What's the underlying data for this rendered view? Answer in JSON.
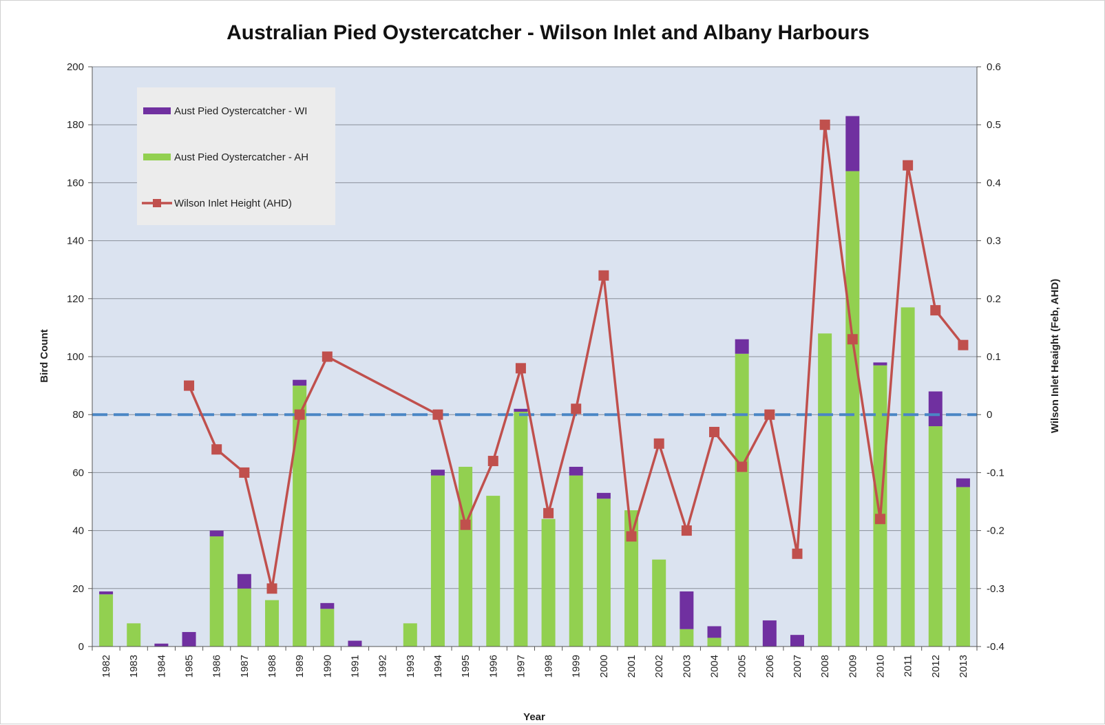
{
  "chart_data": {
    "type": "bar",
    "title": "Australian Pied Oystercatcher - Wilson Inlet and Albany Harbours",
    "xlabel": "Year",
    "ylabel": "Bird Count",
    "y2label": "Wilson Inlet Heaight (Feb, AHD)",
    "ylim": [
      0,
      200
    ],
    "y2lim": [
      -0.4,
      0.6
    ],
    "yticks": [
      0,
      20,
      40,
      60,
      80,
      100,
      120,
      140,
      160,
      180,
      200
    ],
    "y2ticks": [
      "-0.4",
      "-0.3",
      "-0.2",
      "-0.1",
      "0",
      "0.1",
      "0.2",
      "0.3",
      "0.4",
      "0.5",
      "0.6"
    ],
    "stacked": true,
    "grid": true,
    "legend_position": "top-left",
    "reference_line": {
      "axis": "y2",
      "value": 0,
      "style": "dashed",
      "color": "#4a86c5"
    },
    "categories": [
      "1982",
      "1983",
      "1984",
      "1985",
      "1986",
      "1987",
      "1988",
      "1989",
      "1990",
      "1991",
      "1992",
      "1993",
      "1994",
      "1995",
      "1996",
      "1997",
      "1998",
      "1999",
      "2000",
      "2001",
      "2002",
      "2003",
      "2004",
      "2005",
      "2006",
      "2007",
      "2008",
      "2009",
      "2010",
      "2011",
      "2012",
      "2013"
    ],
    "series": [
      {
        "name": "Aust Pied Oystercatcher - AH",
        "type": "bar",
        "color": "#92d050",
        "values": [
          18,
          8,
          0,
          0,
          38,
          20,
          16,
          90,
          13,
          0,
          0,
          8,
          59,
          62,
          52,
          81,
          44,
          59,
          51,
          47,
          30,
          6,
          3,
          101,
          0,
          0,
          108,
          164,
          97,
          117,
          76,
          55
        ]
      },
      {
        "name": "Aust Pied Oystercatcher - WI",
        "type": "bar",
        "color": "#7030a0",
        "values": [
          1,
          0,
          1,
          5,
          2,
          5,
          0,
          2,
          2,
          2,
          0,
          0,
          2,
          0,
          0,
          1,
          0,
          3,
          2,
          0,
          0,
          13,
          4,
          5,
          9,
          4,
          0,
          19,
          1,
          0,
          12,
          3
        ]
      },
      {
        "name": "Wilson Inlet Height (AHD)",
        "type": "line",
        "axis": "y2",
        "color": "#c0504d",
        "marker": "square",
        "values": [
          null,
          null,
          null,
          0.05,
          -0.06,
          -0.1,
          -0.3,
          0.0,
          0.1,
          null,
          null,
          null,
          0.0,
          -0.19,
          -0.08,
          0.08,
          -0.17,
          0.01,
          0.24,
          -0.21,
          -0.05,
          -0.2,
          -0.03,
          -0.09,
          0.0,
          -0.24,
          0.5,
          0.13,
          -0.18,
          0.43,
          0.18,
          0.12
        ]
      }
    ]
  }
}
